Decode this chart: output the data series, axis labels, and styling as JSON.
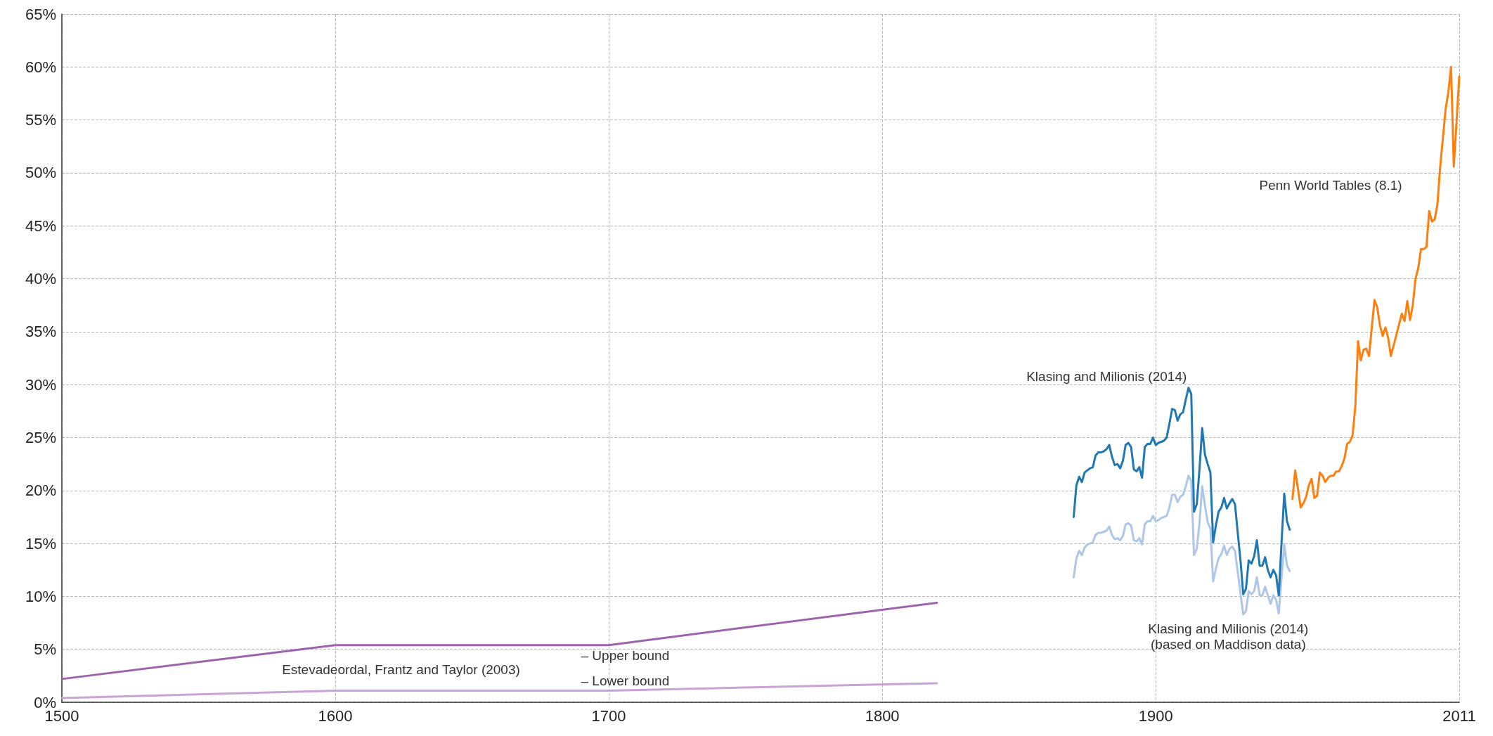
{
  "chart_data": {
    "type": "line",
    "xlim": [
      1500,
      2011
    ],
    "xticks": [
      1500,
      1600,
      1700,
      1800,
      1900,
      2011
    ],
    "ylim": [
      0,
      65
    ],
    "yticks": [
      {
        "value": 0,
        "label": "0%"
      },
      {
        "value": 5,
        "label": "5%"
      },
      {
        "value": 10,
        "label": "10%"
      },
      {
        "value": 15,
        "label": "15%"
      },
      {
        "value": 20,
        "label": "20%"
      },
      {
        "value": 25,
        "label": "25%"
      },
      {
        "value": 30,
        "label": "30%"
      },
      {
        "value": 35,
        "label": "35%"
      },
      {
        "value": 40,
        "label": "40%"
      },
      {
        "value": 45,
        "label": "45%"
      },
      {
        "value": 50,
        "label": "50%"
      },
      {
        "value": 55,
        "label": "55%"
      },
      {
        "value": 60,
        "label": "60%"
      },
      {
        "value": 65,
        "label": "65%"
      }
    ],
    "grid": true,
    "marker": "none",
    "line_style": "solid",
    "series": [
      {
        "color": "#9e63ad",
        "x": [
          1500,
          1600,
          1700,
          1820
        ],
        "values": [
          2.2,
          5.4,
          5.4,
          9.4
        ]
      },
      {
        "color": "#c9a3d4",
        "x": [
          1500,
          1600,
          1700,
          1820
        ],
        "values": [
          0.4,
          1.1,
          1.1,
          1.8
        ]
      },
      {
        "color": "#aec7e8",
        "x": [
          1870,
          1871,
          1872,
          1873,
          1874,
          1875,
          1876,
          1877,
          1878,
          1879,
          1880,
          1881,
          1882,
          1883,
          1884,
          1885,
          1886,
          1887,
          1888,
          1889,
          1890,
          1891,
          1892,
          1893,
          1894,
          1895,
          1896,
          1897,
          1898,
          1899,
          1900,
          1901,
          1902,
          1903,
          1904,
          1905,
          1906,
          1907,
          1908,
          1909,
          1910,
          1911,
          1912,
          1913,
          1914,
          1915,
          1916,
          1917,
          1918,
          1919,
          1920,
          1921,
          1922,
          1923,
          1924,
          1925,
          1926,
          1927,
          1928,
          1929,
          1930,
          1931,
          1932,
          1933,
          1934,
          1935,
          1936,
          1937,
          1938,
          1939,
          1940,
          1941,
          1942,
          1943,
          1944,
          1945,
          1946,
          1947,
          1948,
          1949
        ],
        "values": [
          11.8,
          13.6,
          14.3,
          13.9,
          14.6,
          14.9,
          15.0,
          15.1,
          15.8,
          16.0,
          16.0,
          16.1,
          16.2,
          16.6,
          15.8,
          15.4,
          15.5,
          15.3,
          15.7,
          16.8,
          16.9,
          16.7,
          15.3,
          15.2,
          15.5,
          14.9,
          16.8,
          17.1,
          17.1,
          17.6,
          17.1,
          17.2,
          17.4,
          17.5,
          17.6,
          18.4,
          19.6,
          19.6,
          18.9,
          19.4,
          19.6,
          20.4,
          21.4,
          20.9,
          13.9,
          14.5,
          16.9,
          20.4,
          18.6,
          17.0,
          16.4,
          11.4,
          12.6,
          13.6,
          14.0,
          14.8,
          13.9,
          14.5,
          14.7,
          14.3,
          12.3,
          10.3,
          8.3,
          8.6,
          10.5,
          10.2,
          10.5,
          11.8,
          10.1,
          10.1,
          10.9,
          10.1,
          9.3,
          10.1,
          9.7,
          8.4,
          11.7,
          14.9,
          12.9,
          12.4
        ]
      },
      {
        "color": "#1f77b4",
        "x": [
          1870,
          1871,
          1872,
          1873,
          1874,
          1875,
          1876,
          1877,
          1878,
          1879,
          1880,
          1881,
          1882,
          1883,
          1884,
          1885,
          1886,
          1887,
          1888,
          1889,
          1890,
          1891,
          1892,
          1893,
          1894,
          1895,
          1896,
          1897,
          1898,
          1899,
          1900,
          1901,
          1902,
          1903,
          1904,
          1905,
          1906,
          1907,
          1908,
          1909,
          1910,
          1911,
          1912,
          1913,
          1914,
          1915,
          1916,
          1917,
          1918,
          1919,
          1920,
          1921,
          1922,
          1923,
          1924,
          1925,
          1926,
          1927,
          1928,
          1929,
          1930,
          1931,
          1932,
          1933,
          1934,
          1935,
          1936,
          1937,
          1938,
          1939,
          1940,
          1941,
          1942,
          1943,
          1944,
          1945,
          1946,
          1947,
          1948,
          1949
        ],
        "values": [
          17.5,
          20.5,
          21.3,
          20.8,
          21.7,
          21.9,
          22.1,
          22.2,
          23.3,
          23.6,
          23.6,
          23.7,
          23.9,
          24.3,
          23.2,
          22.4,
          22.5,
          22.1,
          22.8,
          24.3,
          24.5,
          24.1,
          22.0,
          21.8,
          22.2,
          21.2,
          24.1,
          24.4,
          24.4,
          25.0,
          24.3,
          24.5,
          24.6,
          24.7,
          25.0,
          26.3,
          27.7,
          27.6,
          26.6,
          27.2,
          27.4,
          28.6,
          29.7,
          29.1,
          18.0,
          18.7,
          22.0,
          25.9,
          23.4,
          22.5,
          21.7,
          15.1,
          16.7,
          18.0,
          18.4,
          19.3,
          18.3,
          18.8,
          19.2,
          18.7,
          16.0,
          13.4,
          10.2,
          10.7,
          13.4,
          13.1,
          13.8,
          15.3,
          12.9,
          12.9,
          13.7,
          12.5,
          11.8,
          12.5,
          12.0,
          10.1,
          15.0,
          19.7,
          17.1,
          16.3
        ]
      },
      {
        "color": "#ff7f0e",
        "x": [
          1950,
          1951,
          1952,
          1953,
          1954,
          1955,
          1956,
          1957,
          1958,
          1959,
          1960,
          1961,
          1962,
          1963,
          1964,
          1965,
          1966,
          1967,
          1968,
          1969,
          1970,
          1971,
          1972,
          1973,
          1974,
          1975,
          1976,
          1977,
          1978,
          1980,
          1981,
          1982,
          1983,
          1984,
          1985,
          1986,
          1987,
          1988,
          1990,
          1991,
          1992,
          1993,
          1994,
          1995,
          1996,
          1997,
          1998,
          1999,
          2000,
          2001,
          2002,
          2003,
          2004,
          2006,
          2007,
          2008,
          2009,
          2010,
          2011
        ],
        "values": [
          19.2,
          21.9,
          20.2,
          18.4,
          18.8,
          19.4,
          20.5,
          21.1,
          19.3,
          19.5,
          21.7,
          21.4,
          20.8,
          21.2,
          21.4,
          21.4,
          21.8,
          21.8,
          22.3,
          23.0,
          24.4,
          24.6,
          25.2,
          28.0,
          34.1,
          32.3,
          33.3,
          33.4,
          32.7,
          38.0,
          37.3,
          35.6,
          34.6,
          35.4,
          34.4,
          32.7,
          33.7,
          34.7,
          36.7,
          36.0,
          37.9,
          36.1,
          37.5,
          40.0,
          41.0,
          42.8,
          42.8,
          43.0,
          46.4,
          45.4,
          45.6,
          47.0,
          50.5,
          56.0,
          57.6,
          60.0,
          50.6,
          54.8,
          59.1
        ]
      }
    ],
    "annotations": [
      "Estevadeordal, Frantz and Taylor (2003)",
      "– Upper bound",
      "– Lower bound",
      "Klasing and Milionis (2014)",
      "Klasing and Milionis (2014)\n(based on Maddison data)",
      "Penn World Tables (8.1)"
    ]
  }
}
